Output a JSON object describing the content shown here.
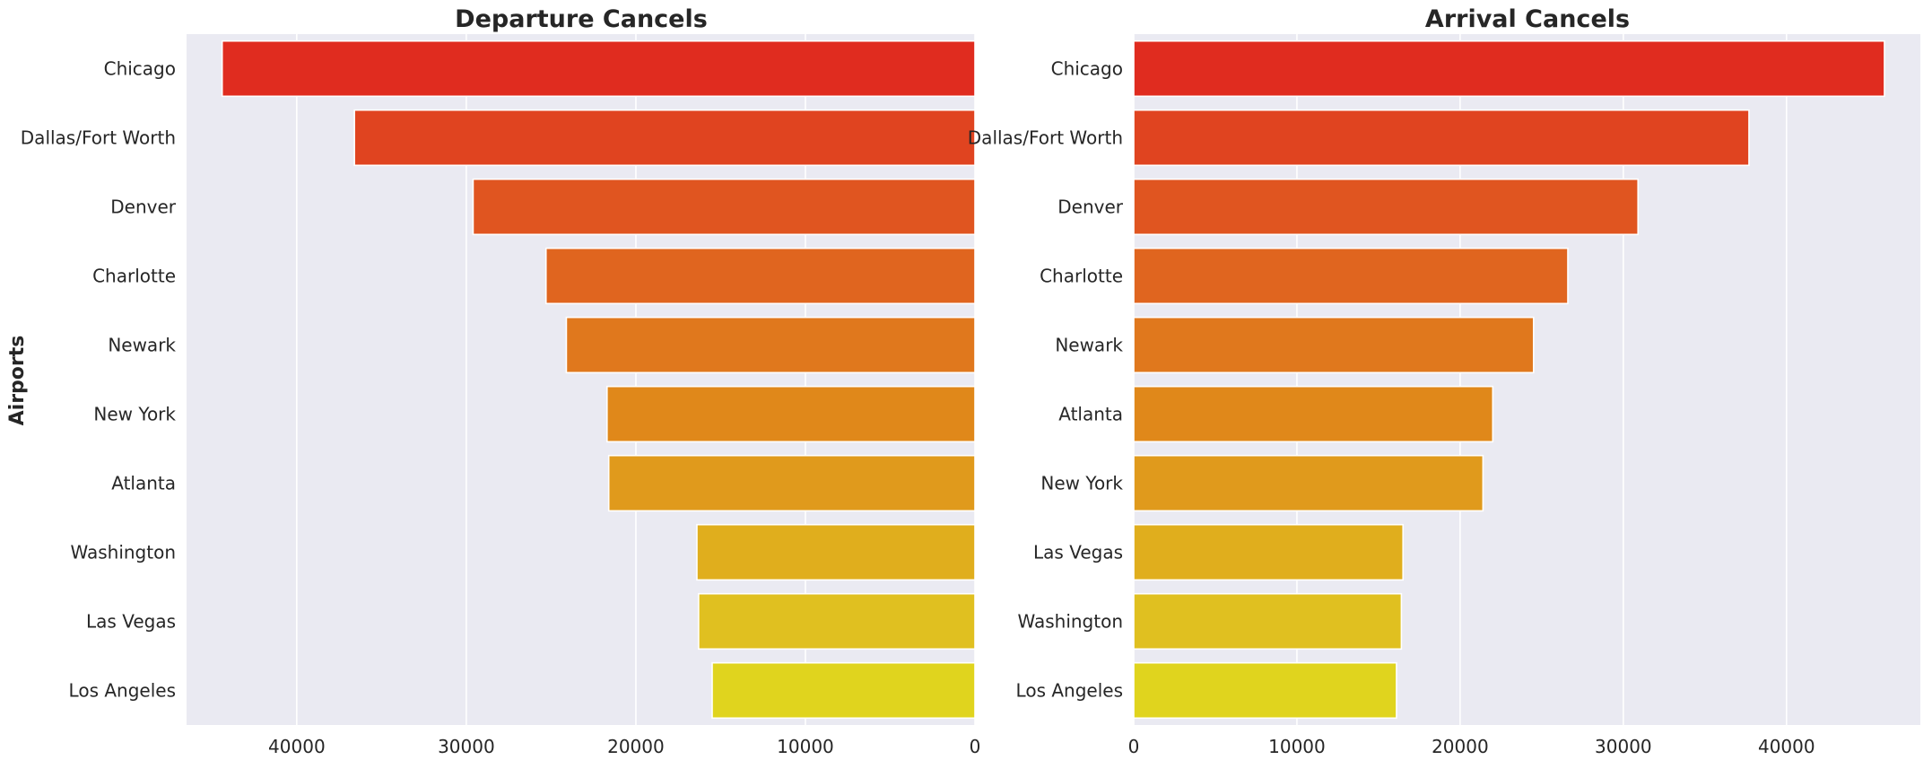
{
  "chart_data": [
    {
      "type": "bar",
      "orientation": "horizontal",
      "x_inverted": true,
      "title": "Departure Cancels",
      "ylabel": "Airports",
      "xlabel": "",
      "xlim": [
        46500,
        0
      ],
      "xticks": [
        40000,
        30000,
        20000,
        10000,
        0
      ],
      "grid": true,
      "categories": [
        "Chicago",
        "Dallas/Fort Worth",
        "Denver",
        "Charlotte",
        "Newark",
        "New York",
        "Atlanta",
        "Washington",
        "Las Vegas",
        "Los Angeles"
      ],
      "values": [
        44400,
        36600,
        29600,
        25300,
        24100,
        21700,
        21600,
        16400,
        16300,
        15500
      ],
      "colors": [
        "#e02c1f",
        "#e04420",
        "#e05520",
        "#e0651f",
        "#e0781d",
        "#e0881a",
        "#e09a1c",
        "#e0ae1d",
        "#e0c020",
        "#e0d41e"
      ]
    },
    {
      "type": "bar",
      "orientation": "horizontal",
      "x_inverted": false,
      "title": "Arrival Cancels",
      "ylabel": "",
      "xlabel": "",
      "xlim": [
        0,
        48200
      ],
      "xticks": [
        0,
        10000,
        20000,
        30000,
        40000
      ],
      "grid": true,
      "categories": [
        "Chicago",
        "Dallas/Fort Worth",
        "Denver",
        "Charlotte",
        "Newark",
        "Atlanta",
        "New York",
        "Las Vegas",
        "Washington",
        "Los Angeles"
      ],
      "values": [
        46000,
        37700,
        30900,
        26600,
        24500,
        22000,
        21400,
        16500,
        16400,
        16100
      ],
      "colors": [
        "#e02c1f",
        "#e04420",
        "#e05520",
        "#e0651f",
        "#e0781d",
        "#e0881a",
        "#e09a1c",
        "#e0ae1d",
        "#e0c020",
        "#e0d41e"
      ]
    }
  ]
}
